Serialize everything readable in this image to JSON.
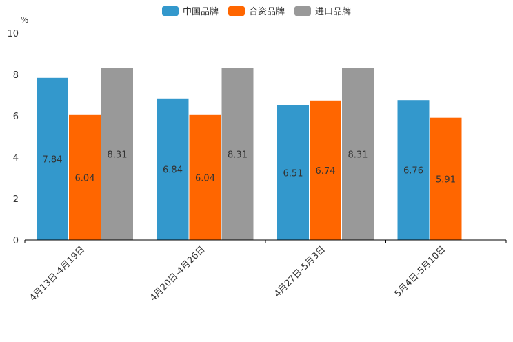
{
  "chart_data": {
    "type": "bar",
    "unit_label": "%",
    "categories": [
      "4月13日-4月19日",
      "4月20日-4月26日",
      "4月27日-5月3日",
      "5月4日-5月10日"
    ],
    "series": [
      {
        "name": "中国品牌",
        "color": "#3398CC",
        "values": [
          7.84,
          6.84,
          6.51,
          6.76
        ]
      },
      {
        "name": "合资品牌",
        "color": "#FF6600",
        "values": [
          6.04,
          6.04,
          6.74,
          5.91
        ]
      },
      {
        "name": "进口品牌",
        "color": "#999999",
        "values": [
          8.31,
          8.31,
          8.31,
          null
        ]
      }
    ],
    "ylim": [
      0,
      10
    ],
    "yticks": [
      0,
      2,
      4,
      6,
      8,
      10
    ],
    "legend_position": "top-center"
  }
}
